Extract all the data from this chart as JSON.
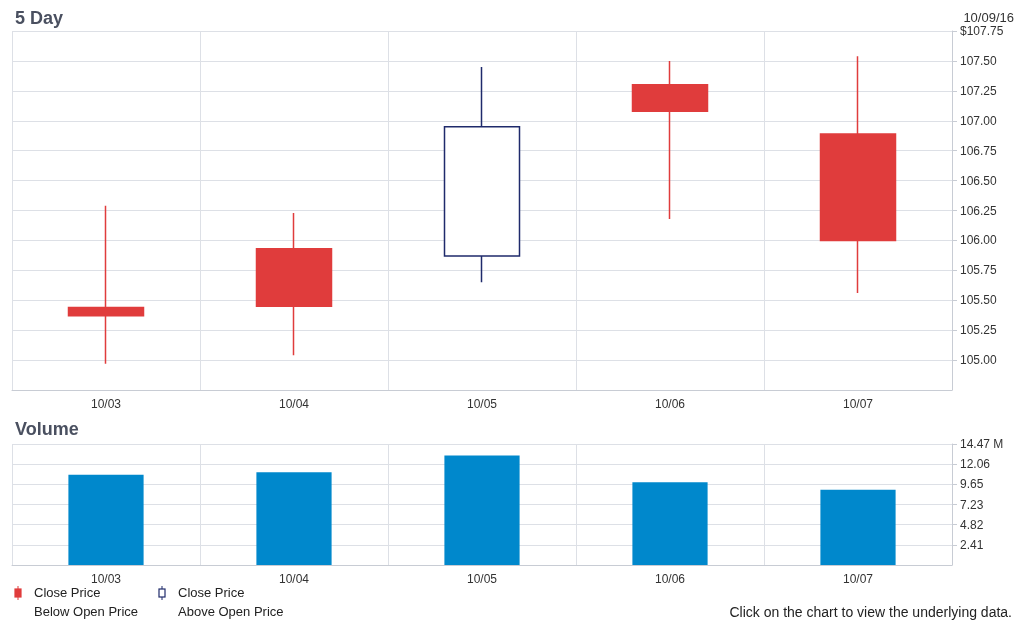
{
  "chart_data": [
    {
      "type": "candlestick",
      "title": "5 Day",
      "categories": [
        "10/03",
        "10/04",
        "10/05",
        "10/06",
        "10/07"
      ],
      "ohlc": [
        [
          105.44,
          106.29,
          104.97,
          105.37
        ],
        [
          105.93,
          106.23,
          105.04,
          105.45
        ],
        [
          105.87,
          107.45,
          105.65,
          106.95
        ],
        [
          107.3,
          107.5,
          106.18,
          107.08
        ],
        [
          106.89,
          107.54,
          105.56,
          106.0
        ]
      ],
      "colors": [
        "#e03c3c",
        "#e03c3c",
        "#1f2a6b",
        "#e03c3c",
        "#e03c3c"
      ],
      "ylim": [
        104.75,
        107.75
      ],
      "yticks": [
        {
          "value": 105,
          "label": "105.00"
        },
        105.25,
        {
          "value": 105.5,
          "label": "105.50"
        },
        105.75,
        {
          "value": 106,
          "label": "106.00"
        },
        106.25,
        {
          "value": 106.5,
          "label": "106.50"
        },
        106.75,
        {
          "value": 107,
          "label": "107.00"
        },
        107.25,
        {
          "value": 107.5,
          "label": "107.50"
        },
        {
          "value": 107.75,
          "label": "$107.75"
        }
      ],
      "grid": true,
      "annotations": [
        "10/09/16",
        "Close Price\nBelow Open Price",
        "Close Price\nAbove Open Price"
      ]
    },
    {
      "type": "bar",
      "title": "Volume",
      "categories": [
        "10/03",
        "10/04",
        "10/05",
        "10/06",
        "10/07"
      ],
      "values": [
        10.8,
        11.1,
        13.1,
        9.9,
        9.0
      ],
      "color": "#0088cc",
      "ylim": [
        0,
        14.47
      ],
      "yticks": [
        2.41,
        4.82,
        7.23,
        9.65,
        12.06,
        {
          "value": 14.47,
          "label": "14.47 M"
        }
      ],
      "grid": true,
      "annotations": [
        "Click on the chart to view the underlying data."
      ]
    }
  ]
}
